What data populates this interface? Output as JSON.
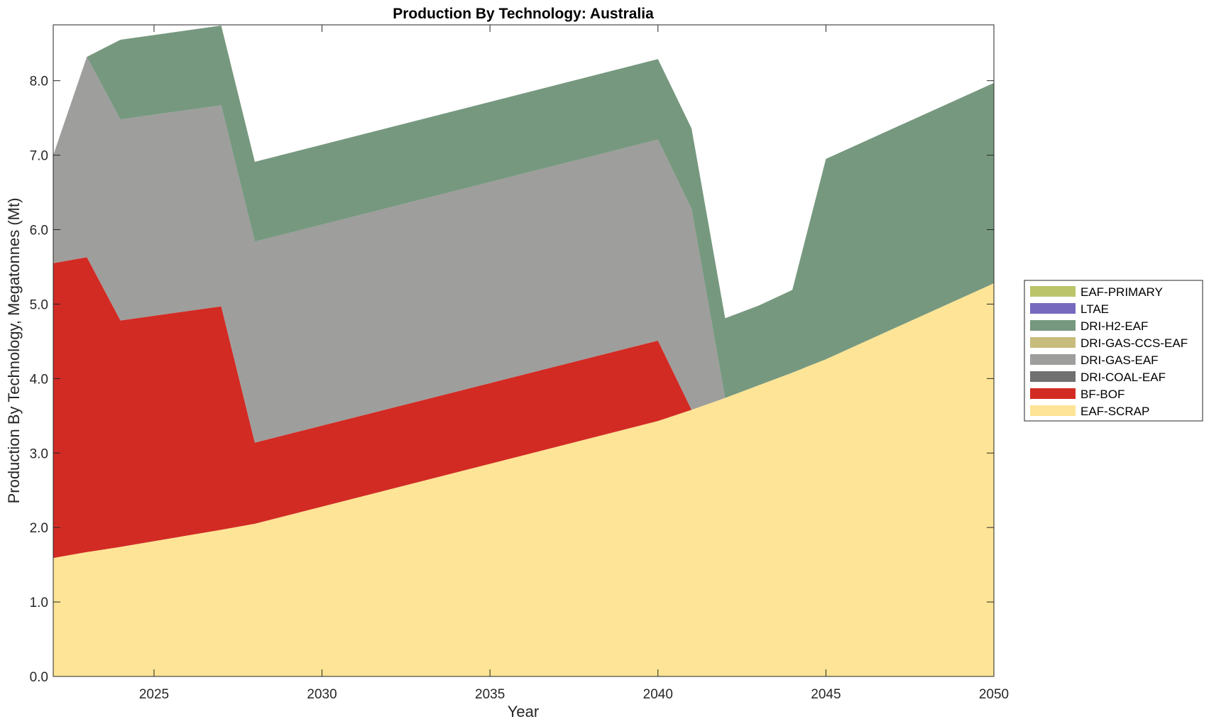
{
  "chart_data": {
    "type": "area",
    "stacked": true,
    "title": "Production By Technology: Australia",
    "xlabel": "Year",
    "ylabel": "Production By Technology, Megatonnes (Mt)",
    "xlim": [
      2022,
      2050
    ],
    "ylim": [
      0,
      8.75
    ],
    "xticks": [
      2025,
      2030,
      2035,
      2040,
      2045,
      2050
    ],
    "xtick_labels": [
      "2025",
      "2030",
      "2035",
      "2040",
      "2045",
      "2050"
    ],
    "yticks": [
      0,
      1,
      2,
      3,
      4,
      5,
      6,
      7,
      8
    ],
    "ytick_labels": [
      "0.0",
      "1.0",
      "2.0",
      "3.0",
      "4.0",
      "5.0",
      "6.0",
      "7.0",
      "8.0"
    ],
    "grid": false,
    "legend_position": "right",
    "x": [
      2022,
      2023,
      2024,
      2027,
      2028,
      2040,
      2041,
      2042,
      2043,
      2044,
      2045,
      2050
    ],
    "series": [
      {
        "name": "EAF-SCRAP",
        "color": "#FDE496",
        "values": [
          1.59,
          1.67,
          1.74,
          1.97,
          2.05,
          3.43,
          3.58,
          3.74,
          3.91,
          4.08,
          4.26,
          5.28
        ]
      },
      {
        "name": "BF-BOF",
        "color": "#D22B24",
        "values": [
          3.96,
          3.96,
          3.04,
          3.0,
          1.09,
          1.08,
          0.0,
          0.0,
          0.0,
          0.0,
          0.0,
          0.0
        ]
      },
      {
        "name": "DRI-COAL-EAF",
        "color": "#707070",
        "values": [
          0,
          0,
          0,
          0,
          0,
          0,
          0,
          0,
          0,
          0,
          0,
          0
        ]
      },
      {
        "name": "DRI-GAS-EAF",
        "color": "#9E9E9C",
        "values": [
          1.45,
          2.69,
          2.7,
          2.7,
          2.7,
          2.7,
          2.7,
          0.0,
          0.0,
          0.0,
          0.0,
          0.0
        ]
      },
      {
        "name": "DRI-GAS-CCS-EAF",
        "color": "#C7BC7C",
        "values": [
          0,
          0,
          0,
          0,
          0,
          0,
          0,
          0,
          0,
          0,
          0,
          0
        ]
      },
      {
        "name": "DRI-H2-EAF",
        "color": "#76987F",
        "values": [
          0.0,
          0.0,
          1.07,
          1.07,
          1.07,
          1.08,
          1.08,
          1.07,
          1.07,
          1.11,
          2.69,
          2.69
        ]
      },
      {
        "name": "LTAE",
        "color": "#7669BE",
        "values": [
          0,
          0,
          0,
          0,
          0,
          0,
          0,
          0,
          0,
          0,
          0,
          0
        ]
      },
      {
        "name": "EAF-PRIMARY",
        "color": "#BCC46A",
        "values": [
          0,
          0,
          0,
          0,
          0,
          0,
          0,
          0,
          0,
          0,
          0,
          0
        ]
      }
    ],
    "legend_order": [
      "EAF-PRIMARY",
      "LTAE",
      "DRI-H2-EAF",
      "DRI-GAS-CCS-EAF",
      "DRI-GAS-EAF",
      "DRI-COAL-EAF",
      "BF-BOF",
      "EAF-SCRAP"
    ]
  }
}
